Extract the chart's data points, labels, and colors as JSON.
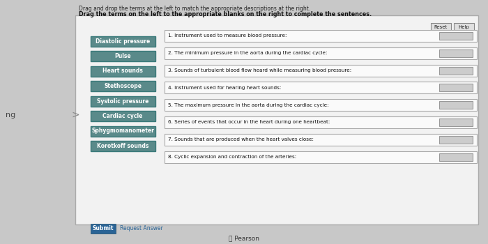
{
  "title1": "Drag and drop the terms at the left to match the appropriate descriptions at the right.",
  "title2": "Drag the terms on the left to the appropriate blanks on the right to complete the sentences.",
  "left_terms": [
    "Diastolic pressure",
    "Pulse",
    "Heart sounds",
    "Stethoscope",
    "Systolic pressure",
    "Cardiac cycle",
    "Sphygmomanometer",
    "Korotkoff sounds"
  ],
  "right_items": [
    "1. Instrument used to measure blood pressure:",
    "2. The minimum pressure in the aorta during the cardiac cycle:",
    "3. Sounds of turbulent blood flow heard while measuring blood pressure:",
    "4. Instrument used for hearing heart sounds:",
    "5. The maximum pressure in the aorta during the cardiac cycle:",
    "6. Series of events that occur in the heart during one heartbeat:",
    "7. Sounds that are produced when the heart valves close:",
    "8. Cyclic expansion and contraction of the arteries:"
  ],
  "left_box_color": "#5a8a8a",
  "left_box_text_color": "#ffffff",
  "answer_box_color": "#cccccc",
  "submit_bg": "#2a6496",
  "submit_text": "Submit",
  "request_text": "Request Answer",
  "reset_text": "Reset",
  "help_text": "Help",
  "pearson_text": "Pearson",
  "left_label": "ng",
  "arrow_label": ">"
}
